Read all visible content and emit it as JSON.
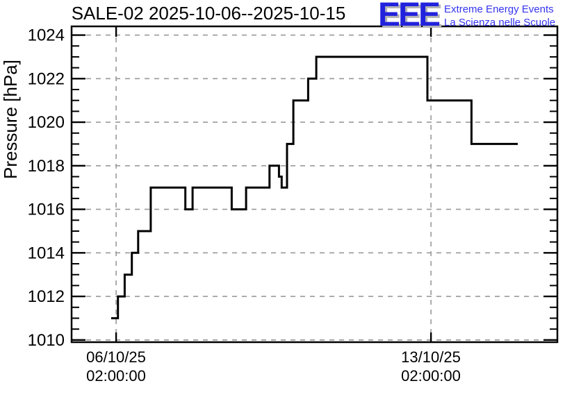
{
  "header": {
    "title": "SALE-02 2025-10-06--2025-10-15"
  },
  "logo": {
    "acronym": "EEE",
    "line1": "Extreme Energy Events",
    "line2": "La Scienza nelle Scuole",
    "acronym_color": "#2222DD",
    "text_color": "#3434EE",
    "shadow_color": "#B5B5B5"
  },
  "chart_data": {
    "type": "line",
    "style": "step-after",
    "title": "SALE-02 2025-10-06--2025-10-15",
    "xlabel": "",
    "ylabel": "Pressure [hPa]",
    "ylim": [
      1009.9,
      1024.4
    ],
    "yticks_major": [
      1010,
      1012,
      1014,
      1016,
      1018,
      1020,
      1022,
      1024
    ],
    "ytick_minor_step": 0.5,
    "x_epoch": "days since 2025-10-06 02:00:00",
    "xlim_days": [
      -0.99,
      9.81
    ],
    "xticks": [
      {
        "t_days": 0,
        "label_line1": "06/10/25",
        "label_line2": "02:00:00"
      },
      {
        "t_days": 7,
        "label_line1": "13/10/25",
        "label_line2": "02:00:00"
      }
    ],
    "grid": "dashed gray lines at major ticks",
    "grid_color": "#999999",
    "line_color": "#000000",
    "legend": "none",
    "series": [
      {
        "name": "pressure",
        "end_t_days": 8.93,
        "step_points": [
          {
            "t_days": -0.11,
            "hPa": 1011
          },
          {
            "t_days": 0.04,
            "hPa": 1012
          },
          {
            "t_days": 0.19,
            "hPa": 1013
          },
          {
            "t_days": 0.35,
            "hPa": 1014
          },
          {
            "t_days": 0.49,
            "hPa": 1015
          },
          {
            "t_days": 0.77,
            "hPa": 1017
          },
          {
            "t_days": 1.54,
            "hPa": 1016
          },
          {
            "t_days": 1.7,
            "hPa": 1017
          },
          {
            "t_days": 2.57,
            "hPa": 1016
          },
          {
            "t_days": 2.89,
            "hPa": 1017
          },
          {
            "t_days": 3.41,
            "hPa": 1018
          },
          {
            "t_days": 3.62,
            "hPa": 1017.5
          },
          {
            "t_days": 3.68,
            "hPa": 1017
          },
          {
            "t_days": 3.8,
            "hPa": 1019
          },
          {
            "t_days": 3.94,
            "hPa": 1021
          },
          {
            "t_days": 4.27,
            "hPa": 1022
          },
          {
            "t_days": 4.45,
            "hPa": 1023
          },
          {
            "t_days": 6.92,
            "hPa": 1021
          },
          {
            "t_days": 7.9,
            "hPa": 1019
          }
        ]
      }
    ]
  }
}
